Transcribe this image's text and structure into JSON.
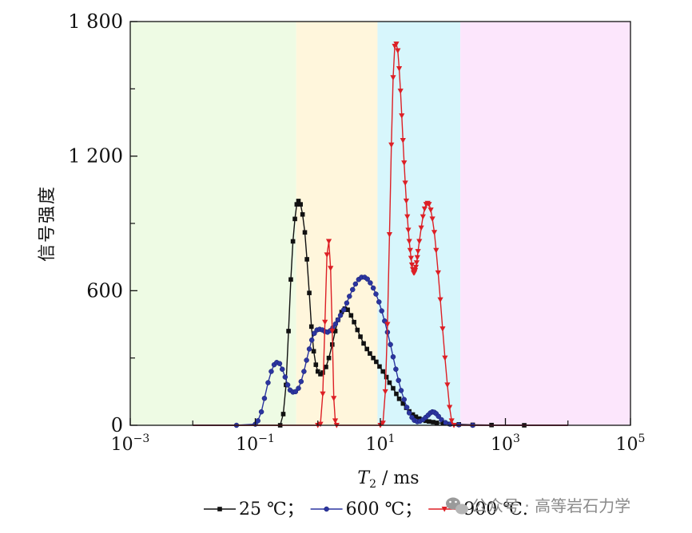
{
  "chart_data": {
    "type": "line",
    "ylabel": "信号强度",
    "xlabel_main": "T",
    "xlabel_sub": "2",
    "xlabel_unit": " / ms",
    "x_scale": "log",
    "xlim": [
      0.001,
      100000
    ],
    "ylim": [
      0,
      1800
    ],
    "y_major_ticks": [
      {
        "value": 0,
        "label": "0"
      },
      {
        "value": 600,
        "label": "600"
      },
      {
        "value": 1200,
        "label": "1 200"
      },
      {
        "value": 1800,
        "label": "1 800"
      }
    ],
    "y_minor_ticks": [
      300,
      900,
      1500
    ],
    "x_ticks": [
      {
        "value": 0.001,
        "base": "10",
        "exp": "−3"
      },
      {
        "value": 0.1,
        "base": "10",
        "exp": "−1"
      },
      {
        "value": 10,
        "base": "10",
        "exp": "1"
      },
      {
        "value": 1000,
        "base": "10",
        "exp": "3"
      },
      {
        "value": 100000,
        "base": "10",
        "exp": "5"
      }
    ],
    "bands": [
      {
        "from": 0.001,
        "to": 0.45,
        "color": "#eefbe4"
      },
      {
        "from": 0.45,
        "to": 9,
        "color": "#fff6dc"
      },
      {
        "from": 9,
        "to": 190,
        "color": "#d7f6fc"
      },
      {
        "from": 190,
        "to": 100000,
        "color": "#fce6fc"
      }
    ],
    "grid": false,
    "legend_position": "bottom",
    "series": [
      {
        "name": "25 ℃；",
        "color": "#111111",
        "marker": "square",
        "points": [
          [
            0.01,
            0
          ],
          [
            0.1,
            0
          ],
          [
            0.25,
            0
          ],
          [
            0.28,
            50
          ],
          [
            0.31,
            180
          ],
          [
            0.34,
            420
          ],
          [
            0.37,
            650
          ],
          [
            0.4,
            820
          ],
          [
            0.43,
            920
          ],
          [
            0.46,
            985
          ],
          [
            0.49,
            1000
          ],
          [
            0.53,
            985
          ],
          [
            0.57,
            940
          ],
          [
            0.62,
            860
          ],
          [
            0.67,
            740
          ],
          [
            0.73,
            590
          ],
          [
            0.79,
            440
          ],
          [
            0.86,
            330
          ],
          [
            0.93,
            270
          ],
          [
            1.0,
            240
          ],
          [
            1.1,
            228
          ],
          [
            1.2,
            235
          ],
          [
            1.35,
            260
          ],
          [
            1.5,
            300
          ],
          [
            1.7,
            360
          ],
          [
            1.9,
            420
          ],
          [
            2.1,
            470
          ],
          [
            2.4,
            505
          ],
          [
            2.7,
            520
          ],
          [
            3.0,
            515
          ],
          [
            3.4,
            490
          ],
          [
            3.8,
            460
          ],
          [
            4.3,
            425
          ],
          [
            4.8,
            395
          ],
          [
            5.4,
            365
          ],
          [
            6.1,
            340
          ],
          [
            6.8,
            320
          ],
          [
            7.7,
            300
          ],
          [
            8.6,
            283
          ],
          [
            9.7,
            262
          ],
          [
            11,
            240
          ],
          [
            12.5,
            215
          ],
          [
            14,
            190
          ],
          [
            16,
            165
          ],
          [
            18,
            140
          ],
          [
            20,
            118
          ],
          [
            23,
            97
          ],
          [
            26,
            78
          ],
          [
            29,
            62
          ],
          [
            33,
            48
          ],
          [
            37,
            38
          ],
          [
            42,
            30
          ],
          [
            47,
            25
          ],
          [
            53,
            20
          ],
          [
            60,
            17
          ],
          [
            70,
            14
          ],
          [
            80,
            11
          ],
          [
            100,
            9
          ],
          [
            130,
            6
          ],
          [
            180,
            4
          ],
          [
            300,
            2
          ],
          [
            600,
            1
          ],
          [
            2000,
            0
          ],
          [
            10000,
            0
          ]
        ]
      },
      {
        "name": "600 ℃；",
        "color": "#2b35a0",
        "marker": "circle",
        "points": [
          [
            0.01,
            0
          ],
          [
            0.05,
            0
          ],
          [
            0.1,
            5
          ],
          [
            0.11,
            20
          ],
          [
            0.125,
            60
          ],
          [
            0.14,
            120
          ],
          [
            0.16,
            190
          ],
          [
            0.18,
            240
          ],
          [
            0.2,
            270
          ],
          [
            0.22,
            280
          ],
          [
            0.245,
            275
          ],
          [
            0.27,
            250
          ],
          [
            0.3,
            215
          ],
          [
            0.33,
            180
          ],
          [
            0.36,
            157
          ],
          [
            0.4,
            148
          ],
          [
            0.44,
            150
          ],
          [
            0.49,
            165
          ],
          [
            0.54,
            195
          ],
          [
            0.6,
            240
          ],
          [
            0.66,
            290
          ],
          [
            0.73,
            340
          ],
          [
            0.8,
            380
          ],
          [
            0.88,
            410
          ],
          [
            0.97,
            425
          ],
          [
            1.07,
            428
          ],
          [
            1.18,
            425
          ],
          [
            1.3,
            418
          ],
          [
            1.43,
            415
          ],
          [
            1.58,
            422
          ],
          [
            1.74,
            435
          ],
          [
            1.92,
            452
          ],
          [
            2.1,
            470
          ],
          [
            2.3,
            490
          ],
          [
            2.6,
            515
          ],
          [
            2.9,
            545
          ],
          [
            3.2,
            575
          ],
          [
            3.6,
            605
          ],
          [
            4.0,
            630
          ],
          [
            4.5,
            650
          ],
          [
            5.0,
            660
          ],
          [
            5.6,
            660
          ],
          [
            6.2,
            652
          ],
          [
            6.9,
            635
          ],
          [
            7.7,
            612
          ],
          [
            8.5,
            585
          ],
          [
            9.5,
            550
          ],
          [
            10.5,
            510
          ],
          [
            11.7,
            465
          ],
          [
            13,
            415
          ],
          [
            14.5,
            360
          ],
          [
            16,
            305
          ],
          [
            17.7,
            250
          ],
          [
            19.5,
            200
          ],
          [
            21.5,
            155
          ],
          [
            24,
            115
          ],
          [
            26.5,
            80
          ],
          [
            29,
            55
          ],
          [
            32,
            35
          ],
          [
            35,
            22
          ],
          [
            39,
            16
          ],
          [
            43,
            18
          ],
          [
            48,
            25
          ],
          [
            53,
            35
          ],
          [
            58,
            45
          ],
          [
            63,
            55
          ],
          [
            68,
            60
          ],
          [
            73,
            58
          ],
          [
            78,
            52
          ],
          [
            85,
            40
          ],
          [
            95,
            25
          ],
          [
            110,
            12
          ],
          [
            130,
            5
          ],
          [
            180,
            2
          ],
          [
            300,
            0
          ],
          [
            1000,
            0
          ],
          [
            10000,
            0
          ]
        ]
      },
      {
        "name": "900 ℃.",
        "color": "#dd1f25",
        "marker": "triangle-down",
        "points": [
          [
            0.01,
            0
          ],
          [
            0.1,
            0
          ],
          [
            1.0,
            0
          ],
          [
            1.1,
            5
          ],
          [
            1.2,
            140
          ],
          [
            1.3,
            460
          ],
          [
            1.4,
            760
          ],
          [
            1.5,
            820
          ],
          [
            1.6,
            700
          ],
          [
            1.7,
            420
          ],
          [
            1.8,
            120
          ],
          [
            1.9,
            20
          ],
          [
            2.0,
            0
          ],
          [
            10,
            0
          ],
          [
            11,
            10
          ],
          [
            12,
            150
          ],
          [
            13,
            450
          ],
          [
            14,
            850
          ],
          [
            15,
            1250
          ],
          [
            16,
            1550
          ],
          [
            17,
            1690
          ],
          [
            18,
            1700
          ],
          [
            19,
            1670
          ],
          [
            20,
            1590
          ],
          [
            21,
            1490
          ],
          [
            22,
            1380
          ],
          [
            23,
            1270
          ],
          [
            24,
            1170
          ],
          [
            25,
            1080
          ],
          [
            26,
            1000
          ],
          [
            27,
            930
          ],
          [
            28,
            870
          ],
          [
            29,
            820
          ],
          [
            30,
            780
          ],
          [
            31,
            745
          ],
          [
            32,
            715
          ],
          [
            33,
            695
          ],
          [
            34,
            680
          ],
          [
            35,
            680
          ],
          [
            36,
            690
          ],
          [
            37,
            705
          ],
          [
            38,
            725
          ],
          [
            39,
            748
          ],
          [
            40,
            775
          ],
          [
            42,
            820
          ],
          [
            45,
            880
          ],
          [
            48,
            930
          ],
          [
            51,
            965
          ],
          [
            54,
            985
          ],
          [
            57,
            990
          ],
          [
            60,
            985
          ],
          [
            64,
            960
          ],
          [
            68,
            920
          ],
          [
            73,
            860
          ],
          [
            78,
            780
          ],
          [
            84,
            680
          ],
          [
            91,
            560
          ],
          [
            99,
            430
          ],
          [
            108,
            300
          ],
          [
            118,
            180
          ],
          [
            128,
            80
          ],
          [
            138,
            20
          ],
          [
            150,
            0
          ],
          [
            300,
            0
          ],
          [
            10000,
            0
          ]
        ]
      }
    ]
  },
  "watermark": {
    "text": "公众号 · 高等岩石力学",
    "icon": "wechat-icon"
  }
}
